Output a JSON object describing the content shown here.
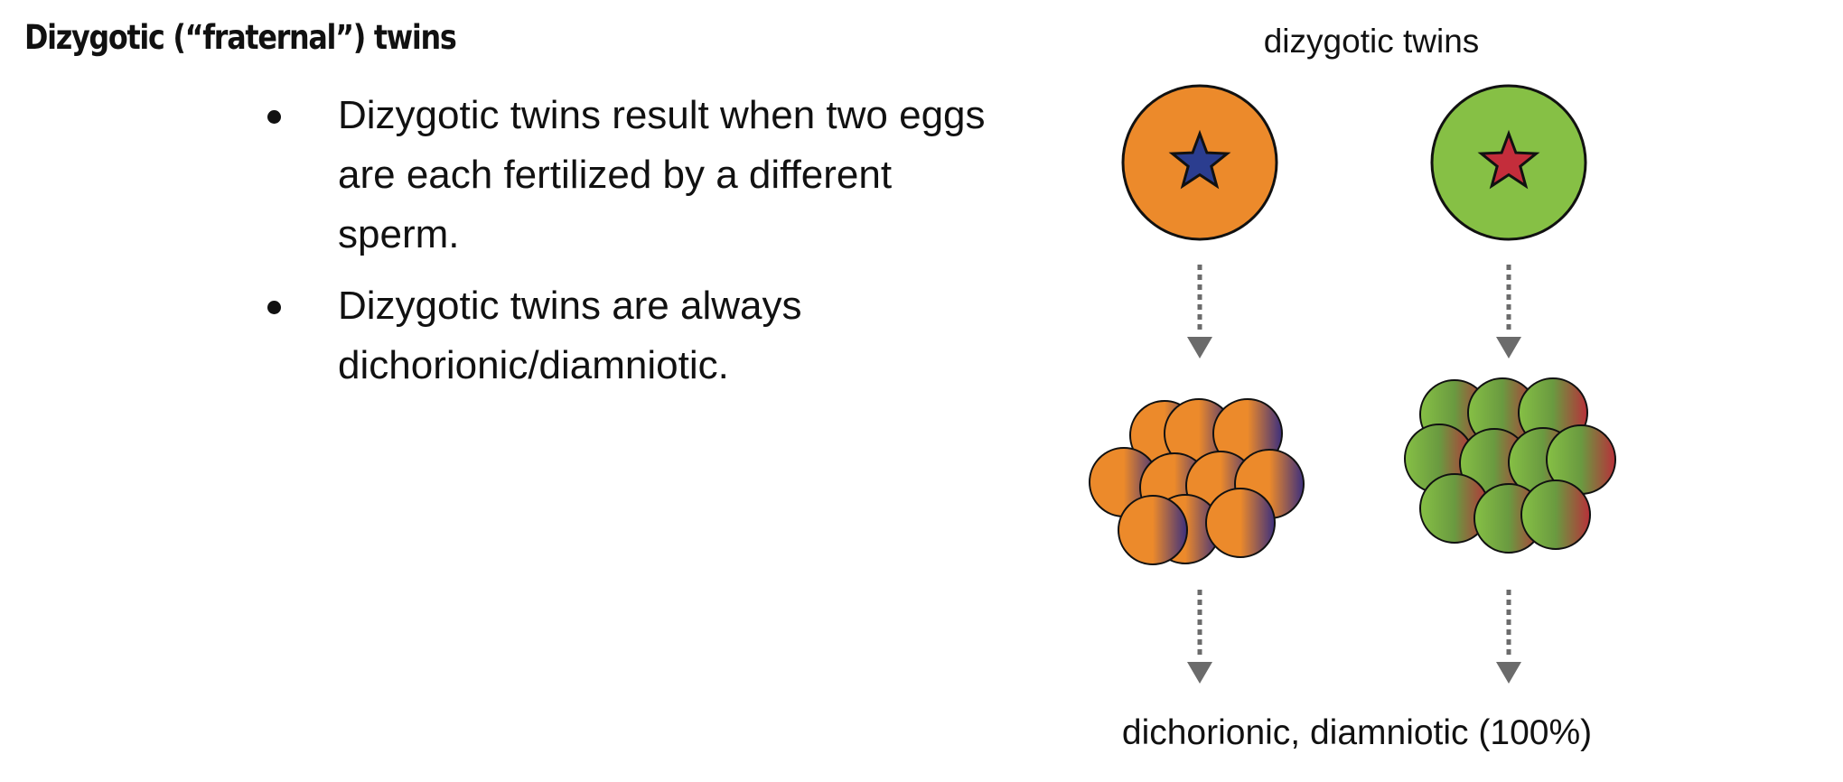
{
  "title": "Dizygotic (“fraternal”) twins",
  "bullets": [
    "Dizygotic twins result when two eggs are each fertilized by a different sperm.",
    "Dizygotic twins are always dichorionic/diamniotic."
  ],
  "diagram": {
    "heading": "dizygotic twins",
    "footer": "dichorionic, diamniotic (100%)",
    "twins": [
      {
        "egg_color": "#ec8a2b",
        "star_color": "#2b3d8f",
        "blend_color": "#3c2f7e"
      },
      {
        "egg_color": "#86c045",
        "star_color": "#c42d3b",
        "blend_color": "#b8303a"
      }
    ],
    "arrow_color": "#6b6b6b"
  }
}
